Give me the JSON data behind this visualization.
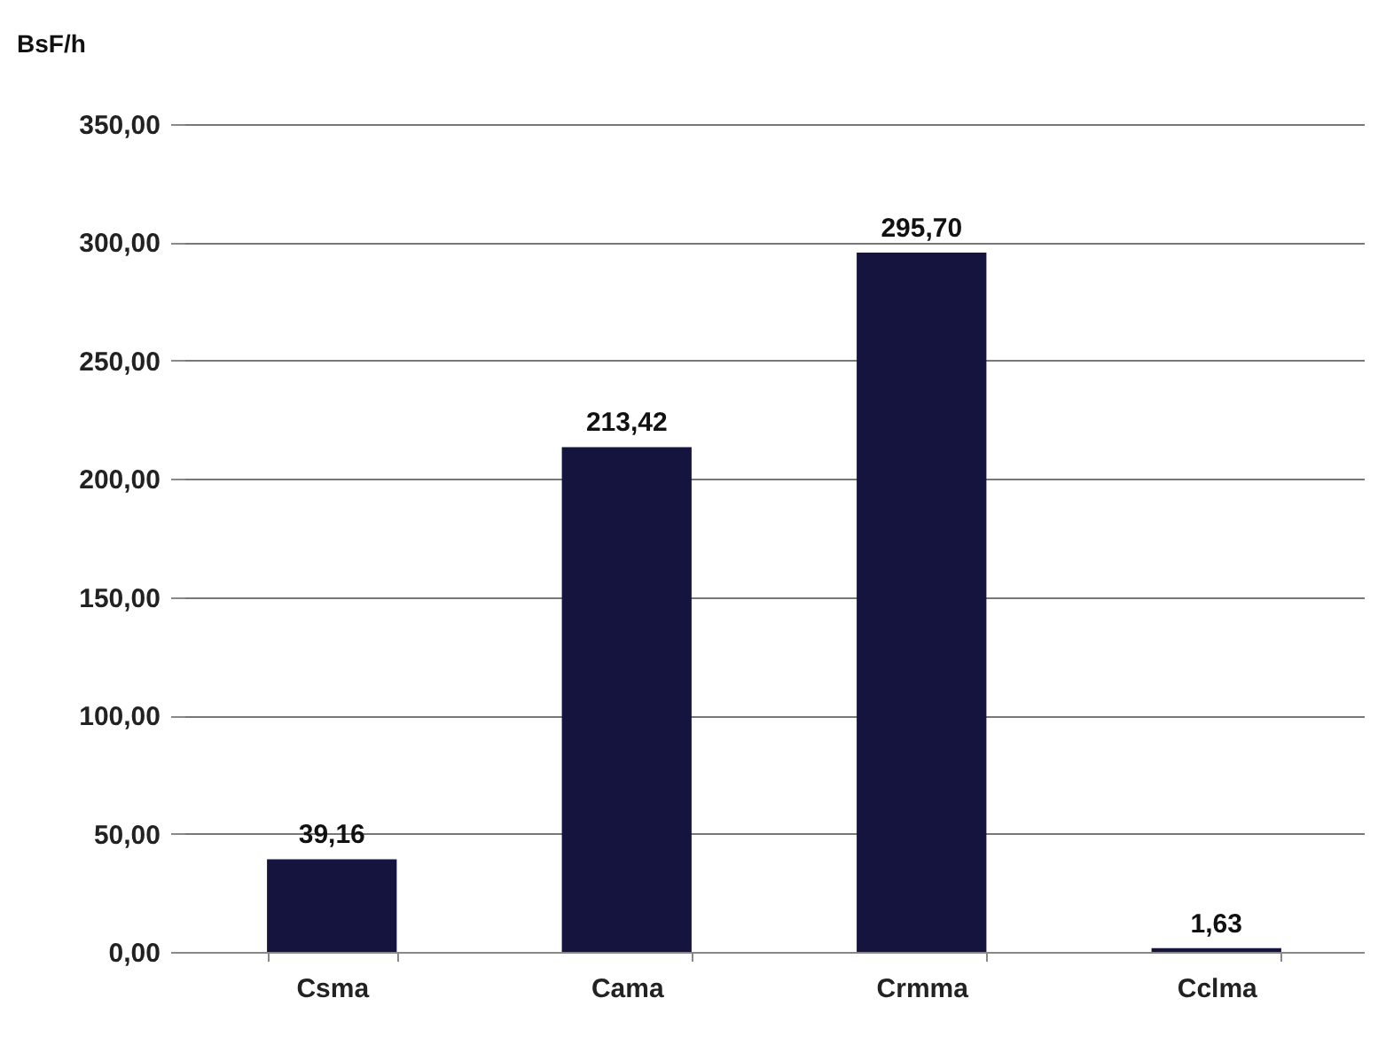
{
  "chart_data": {
    "type": "bar",
    "ylabel": "BsF/h",
    "categories": [
      "Csma",
      "Cama",
      "Crmma",
      "Cclma"
    ],
    "values": [
      39.16,
      213.42,
      295.7,
      1.63
    ],
    "value_labels": [
      "39,16",
      "213,42",
      "295,70",
      "1,63"
    ],
    "color": "#14143f",
    "ylim": [
      0,
      350
    ],
    "yticks": [
      {
        "value": 0,
        "label": "0,00"
      },
      {
        "value": 50,
        "label": "50,00"
      },
      {
        "value": 100,
        "label": "100,00"
      },
      {
        "value": 150,
        "label": "150,00"
      },
      {
        "value": 200,
        "label": "200,00"
      },
      {
        "value": 250,
        "label": "250,00"
      },
      {
        "value": 300,
        "label": "300,00"
      },
      {
        "value": 350,
        "label": "350,00"
      }
    ],
    "grid": "y"
  }
}
